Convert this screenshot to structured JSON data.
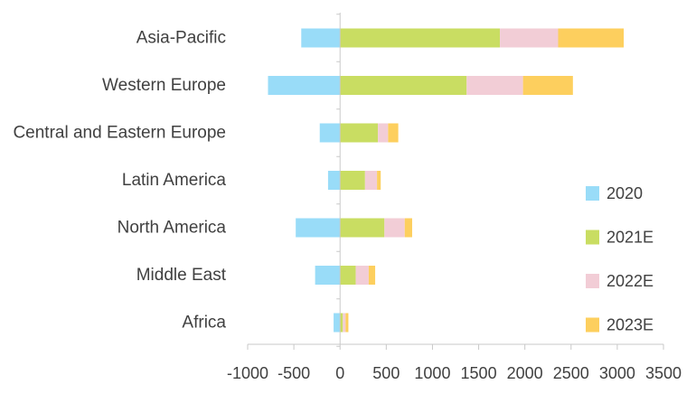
{
  "chart_data": {
    "type": "bar",
    "orientation": "horizontal",
    "stacked": true,
    "categories": [
      "Asia-Pacific",
      "Western Europe",
      "Central and Eastern Europe",
      "Latin America",
      "North America",
      "Middle East",
      "Africa"
    ],
    "series": [
      {
        "name": "2020",
        "color": "#99DCF8",
        "values": [
          -420,
          -780,
          -220,
          -130,
          -480,
          -270,
          -70
        ]
      },
      {
        "name": "2021E",
        "color": "#C9DD62",
        "values": [
          1730,
          1370,
          410,
          270,
          480,
          170,
          30
        ]
      },
      {
        "name": "2022E",
        "color": "#F2CDD6",
        "values": [
          630,
          610,
          110,
          130,
          220,
          140,
          30
        ]
      },
      {
        "name": "2023E",
        "color": "#FDCF5E",
        "values": [
          710,
          540,
          110,
          40,
          80,
          70,
          30
        ]
      }
    ],
    "xlim": [
      -1000,
      3500
    ],
    "xticks": [
      "-1000",
      "-500",
      "0",
      "500",
      "1000",
      "1500",
      "2000",
      "2500",
      "3000",
      "3500"
    ],
    "grid": false,
    "legend": "right"
  }
}
